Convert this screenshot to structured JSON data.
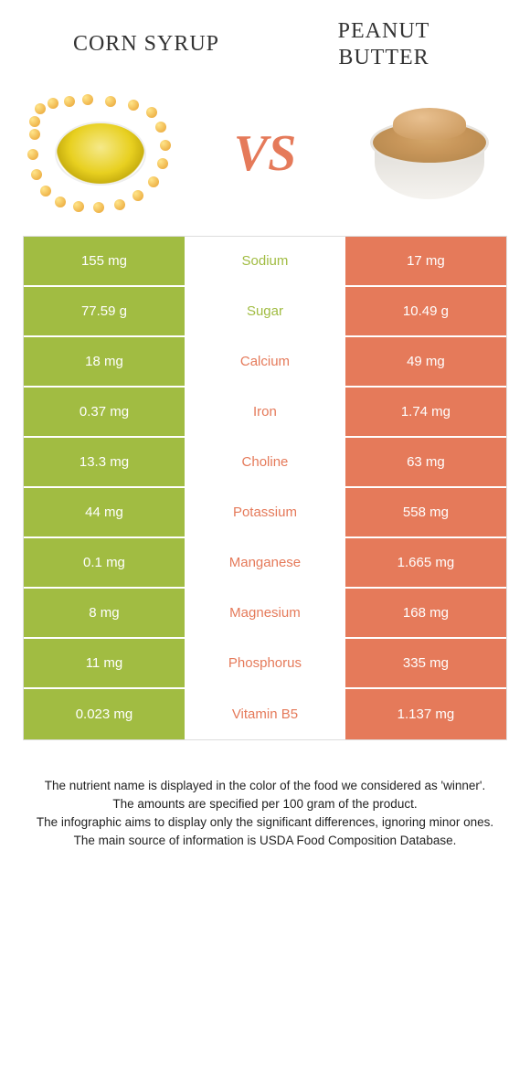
{
  "header": {
    "left_title": "CORN SYRUP",
    "right_title": "PEANUT BUTTER",
    "vs_label": "VS"
  },
  "colors": {
    "green": "#a1bc42",
    "orange": "#e57a5a",
    "mid_bg": "#ffffff",
    "cell_text": "#ffffff"
  },
  "rows": [
    {
      "left": "155 mg",
      "mid": "Sodium",
      "right": "17 mg",
      "winner": "left"
    },
    {
      "left": "77.59 g",
      "mid": "Sugar",
      "right": "10.49 g",
      "winner": "left"
    },
    {
      "left": "18 mg",
      "mid": "Calcium",
      "right": "49 mg",
      "winner": "right"
    },
    {
      "left": "0.37 mg",
      "mid": "Iron",
      "right": "1.74 mg",
      "winner": "right"
    },
    {
      "left": "13.3 mg",
      "mid": "Choline",
      "right": "63 mg",
      "winner": "right"
    },
    {
      "left": "44 mg",
      "mid": "Potassium",
      "right": "558 mg",
      "winner": "right"
    },
    {
      "left": "0.1 mg",
      "mid": "Manganese",
      "right": "1.665 mg",
      "winner": "right"
    },
    {
      "left": "8 mg",
      "mid": "Magnesium",
      "right": "168 mg",
      "winner": "right"
    },
    {
      "left": "11 mg",
      "mid": "Phosphorus",
      "right": "335 mg",
      "winner": "right"
    },
    {
      "left": "0.023 mg",
      "mid": "Vitamin B5",
      "right": "1.137 mg",
      "winner": "right"
    }
  ],
  "footer": {
    "line1": "The nutrient name is displayed in the color of the food we considered as 'winner'.",
    "line2": "The amounts are specified per 100 gram of the product.",
    "line3": "The infographic aims to display only the significant differences, ignoring minor ones.",
    "line4": "The main source of information is USDA Food Composition Database."
  }
}
